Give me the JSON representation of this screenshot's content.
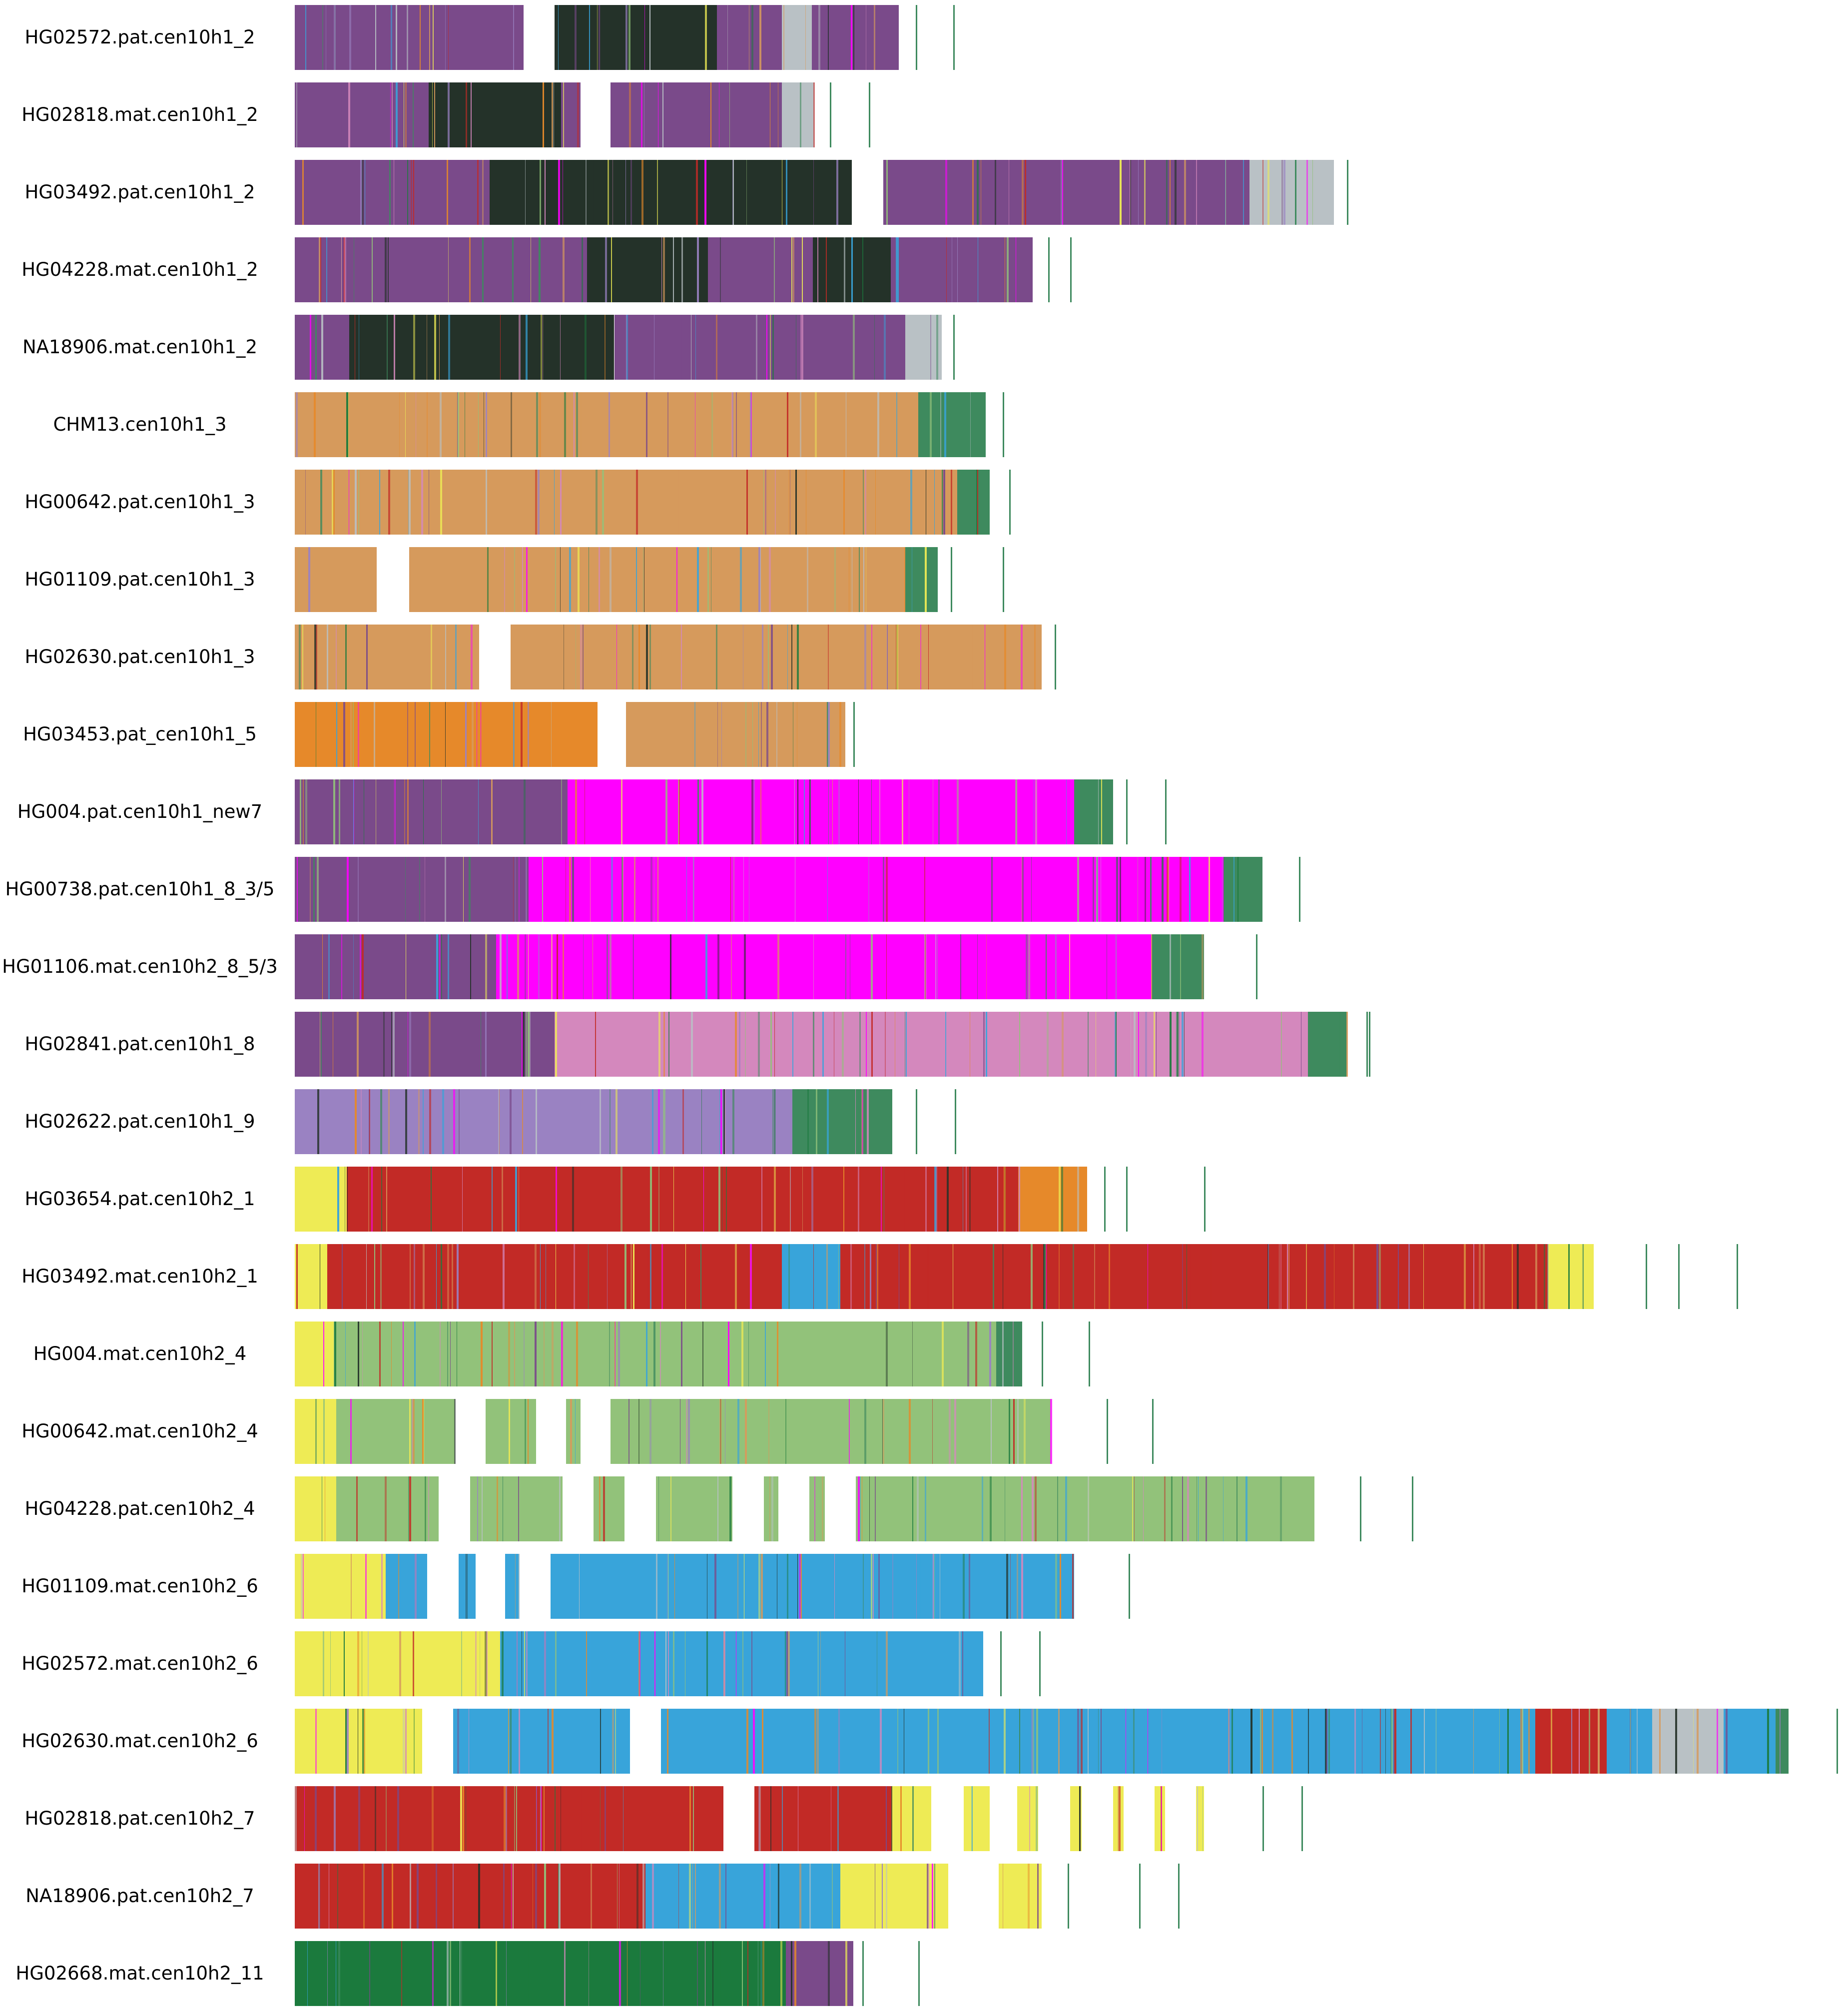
{
  "chart_data": {
    "type": "heatmap",
    "title": "",
    "xlabel": "",
    "ylabel": "",
    "grid": false,
    "legend": "none",
    "x_range": [
      0,
      1000
    ],
    "colors": {
      "dark": "#243229",
      "gray": "#b9c1c5",
      "orange": "#e6892a",
      "tan": "#d69a5c",
      "magenta": "#ff00ff",
      "pink": "#d488bd",
      "purple": "#9a82c2",
      "red": "#c22a26",
      "lightgreen": "#92c27a",
      "blue": "#38a4da",
      "yellow": "#eeeb55",
      "green": "#1b7a3d",
      "mixA": "#7a4a8a",
      "mixB": "#3e8a5e"
    },
    "rows": [
      {
        "label": "HG02572.pat.cen10h1_2",
        "base": "dark",
        "segments": [
          [
            0,
            176,
            "mixA"
          ],
          [
            200,
            325,
            "dark"
          ],
          [
            325,
            375,
            "mixA"
          ],
          [
            375,
            398,
            "gray"
          ],
          [
            398,
            465,
            "mixA"
          ]
        ],
        "ticks": [
          478,
          507
        ]
      },
      {
        "label": "HG02818.mat.cen10h1_2",
        "base": "dark",
        "segments": [
          [
            0,
            103,
            "mixA"
          ],
          [
            103,
            205,
            "dark"
          ],
          [
            205,
            220,
            "mixA"
          ],
          [
            243,
            307,
            "mixA"
          ],
          [
            307,
            375,
            "mixA"
          ],
          [
            375,
            400,
            "gray"
          ]
        ],
        "ticks": [
          412,
          442
        ]
      },
      {
        "label": "HG03492.pat.cen10h1_2",
        "base": "dark",
        "segments": [
          [
            0,
            150,
            "mixA"
          ],
          [
            150,
            429,
            "dark"
          ],
          [
            453,
            735,
            "mixA"
          ],
          [
            735,
            800,
            "gray"
          ]
        ],
        "ticks": [
          810,
          770
        ]
      },
      {
        "label": "HG04228.mat.cen10h1_2",
        "base": "dark",
        "segments": [
          [
            0,
            225,
            "mixA"
          ],
          [
            225,
            318,
            "dark"
          ],
          [
            318,
            399,
            "mixA"
          ],
          [
            399,
            459,
            "dark"
          ],
          [
            459,
            490,
            "mixA"
          ],
          [
            490,
            568,
            "mixA"
          ]
        ],
        "ticks": [
          580,
          597
        ]
      },
      {
        "label": "NA18906.mat.cen10h1_2",
        "base": "dark",
        "segments": [
          [
            0,
            42,
            "mixA"
          ],
          [
            42,
            246,
            "dark"
          ],
          [
            246,
            324,
            "mixA"
          ],
          [
            324,
            470,
            "mixA"
          ],
          [
            470,
            498,
            "gray"
          ]
        ],
        "ticks": [
          507
        ]
      },
      {
        "label": "CHM13.cen10h1_3",
        "base": "gray",
        "segments": [
          [
            0,
            530,
            "tan"
          ],
          [
            480,
            532,
            "mixB"
          ]
        ],
        "ticks": [
          545
        ]
      },
      {
        "label": "HG00642.pat.cen10h1_3",
        "base": "gray",
        "segments": [
          [
            0,
            530,
            "tan"
          ],
          [
            510,
            535,
            "mixB"
          ]
        ],
        "ticks": [
          550
        ]
      },
      {
        "label": "HG01109.pat.cen10h1_3",
        "base": "gray",
        "segments": [
          [
            0,
            63,
            "tan"
          ],
          [
            88,
            470,
            "tan"
          ],
          [
            470,
            495,
            "mixB"
          ]
        ],
        "ticks": [
          505,
          545
        ]
      },
      {
        "label": "HG02630.pat.cen10h1_3",
        "base": "gray",
        "segments": [
          [
            0,
            142,
            "tan"
          ],
          [
            166,
            575,
            "tan"
          ]
        ],
        "ticks": [
          585
        ]
      },
      {
        "label": "HG03453.pat_cen10h1_5",
        "base": "orange",
        "segments": [
          [
            0,
            233,
            "orange"
          ],
          [
            255,
            424,
            "tan"
          ]
        ],
        "ticks": [
          430
        ]
      },
      {
        "label": "HG004.pat.cen10h1_new7",
        "base": "magenta",
        "segments": [
          [
            0,
            210,
            "mixA"
          ],
          [
            210,
            600,
            "magenta"
          ],
          [
            600,
            630,
            "mixB"
          ]
        ],
        "ticks": [
          640,
          670
        ]
      },
      {
        "label": "HG00738.pat.cen10h1_8_3/5",
        "base": "magenta",
        "segments": [
          [
            0,
            180,
            "mixA"
          ],
          [
            180,
            715,
            "magenta"
          ],
          [
            715,
            745,
            "mixB"
          ]
        ],
        "ticks": [
          773
        ]
      },
      {
        "label": "HG01106.mat.cen10h2_8_5/3",
        "base": "magenta",
        "segments": [
          [
            0,
            155,
            "mixA"
          ],
          [
            155,
            660,
            "magenta"
          ],
          [
            660,
            700,
            "mixB"
          ]
        ],
        "ticks": [
          740
        ]
      },
      {
        "label": "HG02841.pat.cen10h1_8",
        "base": "pink",
        "segments": [
          [
            0,
            200,
            "mixA"
          ],
          [
            200,
            780,
            "pink"
          ],
          [
            780,
            810,
            "mixB"
          ]
        ],
        "ticks": [
          825,
          827
        ]
      },
      {
        "label": "HG02622.pat.cen10h1_9",
        "base": "purple",
        "segments": [
          [
            0,
            383,
            "purple"
          ],
          [
            383,
            460,
            "mixB"
          ]
        ],
        "ticks": [
          478,
          508
        ]
      },
      {
        "label": "HG03654.pat.cen10h2_1",
        "base": "red",
        "segments": [
          [
            0,
            40,
            "yellow"
          ],
          [
            40,
            557,
            "red"
          ],
          [
            557,
            610,
            "orange"
          ]
        ],
        "ticks": [
          623,
          640,
          700
        ]
      },
      {
        "label": "HG03492.mat.cen10h2_1",
        "base": "red",
        "segments": [
          [
            0,
            25,
            "yellow"
          ],
          [
            25,
            375,
            "red"
          ],
          [
            375,
            420,
            "blue"
          ],
          [
            420,
            965,
            "red"
          ],
          [
            965,
            1000,
            "yellow"
          ]
        ],
        "ticks": [
          1040,
          1065,
          1110
        ]
      },
      {
        "label": "HG004.mat.cen10h2_4",
        "base": "lightgreen",
        "segments": [
          [
            0,
            30,
            "yellow"
          ],
          [
            30,
            540,
            "lightgreen"
          ],
          [
            540,
            560,
            "mixB"
          ]
        ],
        "ticks": [
          575,
          611
        ]
      },
      {
        "label": "HG00642.mat.cen10h2_4",
        "base": "lightgreen",
        "segments": [
          [
            0,
            32,
            "yellow"
          ],
          [
            32,
            123,
            "lightgreen"
          ],
          [
            147,
            186,
            "lightgreen"
          ],
          [
            209,
            220,
            "lightgreen"
          ],
          [
            243,
            582,
            "lightgreen"
          ]
        ],
        "ticks": [
          625,
          660
        ]
      },
      {
        "label": "HG04228.pat.cen10h2_4",
        "base": "lightgreen",
        "segments": [
          [
            0,
            32,
            "yellow"
          ],
          [
            32,
            111,
            "lightgreen"
          ],
          [
            135,
            206,
            "lightgreen"
          ],
          [
            230,
            254,
            "lightgreen"
          ],
          [
            278,
            337,
            "lightgreen"
          ],
          [
            361,
            372,
            "lightgreen"
          ],
          [
            396,
            408,
            "lightgreen"
          ],
          [
            432,
            785,
            "lightgreen"
          ]
        ],
        "ticks": [
          820,
          860
        ]
      },
      {
        "label": "HG01109.mat.cen10h2_6",
        "base": "blue",
        "segments": [
          [
            0,
            70,
            "yellow"
          ],
          [
            70,
            102,
            "blue"
          ],
          [
            126,
            139,
            "blue"
          ],
          [
            162,
            173,
            "blue"
          ],
          [
            197,
            520,
            "blue"
          ],
          [
            520,
            600,
            "blue"
          ]
        ],
        "ticks": [
          642
        ]
      },
      {
        "label": "HG02572.mat.cen10h2_6",
        "base": "blue",
        "segments": [
          [
            0,
            158,
            "yellow"
          ],
          [
            158,
            530,
            "blue"
          ]
        ],
        "ticks": [
          543,
          573
        ]
      },
      {
        "label": "HG02630.mat.cen10h2_6",
        "base": "blue",
        "segments": [
          [
            0,
            98,
            "yellow"
          ],
          [
            122,
            258,
            "blue"
          ],
          [
            282,
            955,
            "blue"
          ],
          [
            955,
            1010,
            "red"
          ],
          [
            1010,
            1045,
            "blue"
          ],
          [
            1045,
            1100,
            "gray"
          ],
          [
            1100,
            1140,
            "blue"
          ],
          [
            1140,
            1150,
            "mixB"
          ]
        ],
        "ticks": [
          1187
        ]
      },
      {
        "label": "HG02818.pat.cen10h2_7",
        "base": "red",
        "segments": [
          [
            0,
            330,
            "red"
          ],
          [
            354,
            460,
            "red"
          ],
          [
            460,
            490,
            "yellow"
          ],
          [
            515,
            535,
            "yellow"
          ],
          [
            556,
            572,
            "yellow"
          ],
          [
            597,
            606,
            "yellow"
          ],
          [
            630,
            638,
            "yellow"
          ],
          [
            662,
            670,
            "yellow"
          ],
          [
            694,
            700,
            "yellow"
          ]
        ],
        "ticks": [
          745,
          775
        ]
      },
      {
        "label": "NA18906.pat.cen10h2_7",
        "base": "red",
        "segments": [
          [
            0,
            270,
            "red"
          ],
          [
            270,
            420,
            "blue"
          ],
          [
            420,
            503,
            "yellow"
          ],
          [
            542,
            575,
            "yellow"
          ]
        ],
        "ticks": [
          595,
          650,
          680
        ]
      },
      {
        "label": "HG02668.mat.cen10h2_11",
        "base": "green",
        "segments": [
          [
            0,
            378,
            "green"
          ],
          [
            378,
            430,
            "mixA"
          ]
        ],
        "ticks": [
          437,
          480
        ]
      }
    ]
  }
}
